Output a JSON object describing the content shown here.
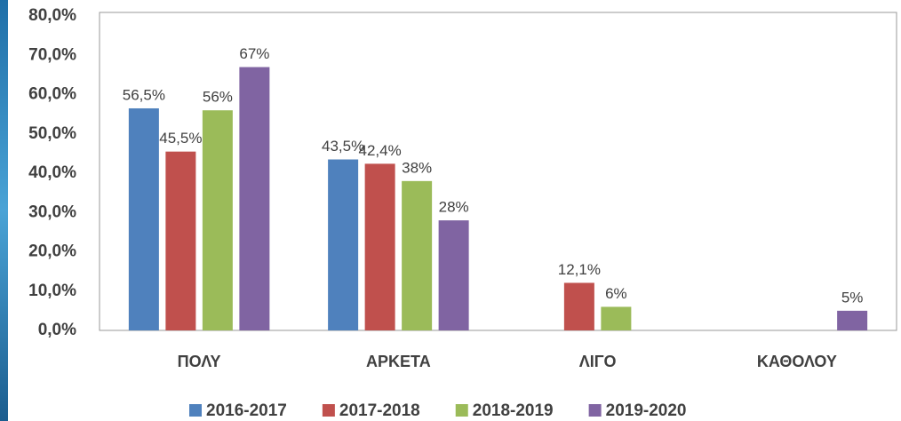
{
  "chart_data": {
    "type": "bar",
    "categories": [
      "ΠΟΛΥ",
      "ΑΡΚΕΤΑ",
      "ΛΙΓΟ",
      "ΚΑΘΟΛΟΥ"
    ],
    "series": [
      {
        "name": "2016-2017",
        "color": "#4f81bd",
        "values": [
          56.5,
          43.5,
          null,
          null
        ],
        "value_labels": [
          "56,5%",
          "43,5%",
          null,
          null
        ]
      },
      {
        "name": "2017-2018",
        "color": "#c0504d",
        "values": [
          45.5,
          42.4,
          12.1,
          null
        ],
        "value_labels": [
          "45,5%",
          "42,4%",
          "12,1%",
          null
        ]
      },
      {
        "name": "2018-2019",
        "color": "#9bbb59",
        "values": [
          56,
          38,
          6,
          null
        ],
        "value_labels": [
          "56%",
          "38%",
          "6%",
          null
        ]
      },
      {
        "name": "2019-2020",
        "color": "#8064a2",
        "values": [
          67,
          28,
          null,
          5
        ],
        "value_labels": [
          "67%",
          "28%",
          null,
          "5%"
        ]
      }
    ],
    "ylim": [
      0,
      80
    ],
    "yticks": [
      {
        "value": 0,
        "label": "0,0%"
      },
      {
        "value": 10,
        "label": "10,0%"
      },
      {
        "value": 20,
        "label": "20,0%"
      },
      {
        "value": 30,
        "label": "30,0%"
      },
      {
        "value": 40,
        "label": "40,0%"
      },
      {
        "value": 50,
        "label": "50,0%"
      },
      {
        "value": 60,
        "label": "60,0%"
      },
      {
        "value": 70,
        "label": "70,0%"
      },
      {
        "value": 80,
        "label": "80,0%"
      }
    ],
    "grid": false
  }
}
